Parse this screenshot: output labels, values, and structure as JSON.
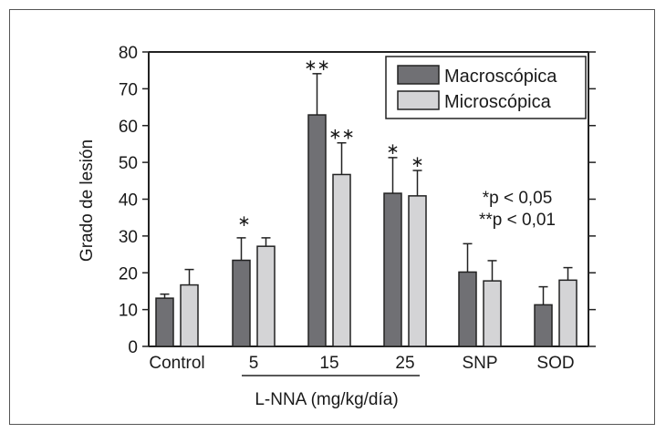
{
  "chart_data": {
    "type": "bar",
    "title": "",
    "ylabel": "Grado de lesión",
    "xlabel": "L-NNA (mg/kg/día)",
    "ylim": [
      0,
      80
    ],
    "yticks": [
      "0",
      "10",
      "20",
      "30",
      "40",
      "50",
      "60",
      "70",
      "80"
    ],
    "categories": [
      "Control",
      "5",
      "15",
      "25",
      "SNP",
      "SOD"
    ],
    "group_label_span": [
      "5",
      "25"
    ],
    "legend_position": "top-right",
    "series": [
      {
        "name": "Macroscópica",
        "color": "#707074",
        "values": [
          13.1,
          23.4,
          62.9,
          41.6,
          20.2,
          11.3
        ],
        "error_upper": [
          14.2,
          29.5,
          74.1,
          51.3,
          27.9,
          16.2
        ],
        "significance": [
          "",
          "*",
          "**",
          "*",
          "",
          ""
        ]
      },
      {
        "name": "Microscópica",
        "color": "#d4d4d6",
        "values": [
          16.7,
          27.2,
          46.7,
          40.9,
          17.8,
          18.0
        ],
        "error_upper": [
          20.9,
          29.5,
          55.3,
          47.8,
          23.3,
          21.4
        ],
        "significance": [
          "",
          "",
          "**",
          "*",
          "",
          ""
        ]
      }
    ],
    "annotations": [
      "*p < 0,05",
      "**p < 0,01"
    ]
  }
}
